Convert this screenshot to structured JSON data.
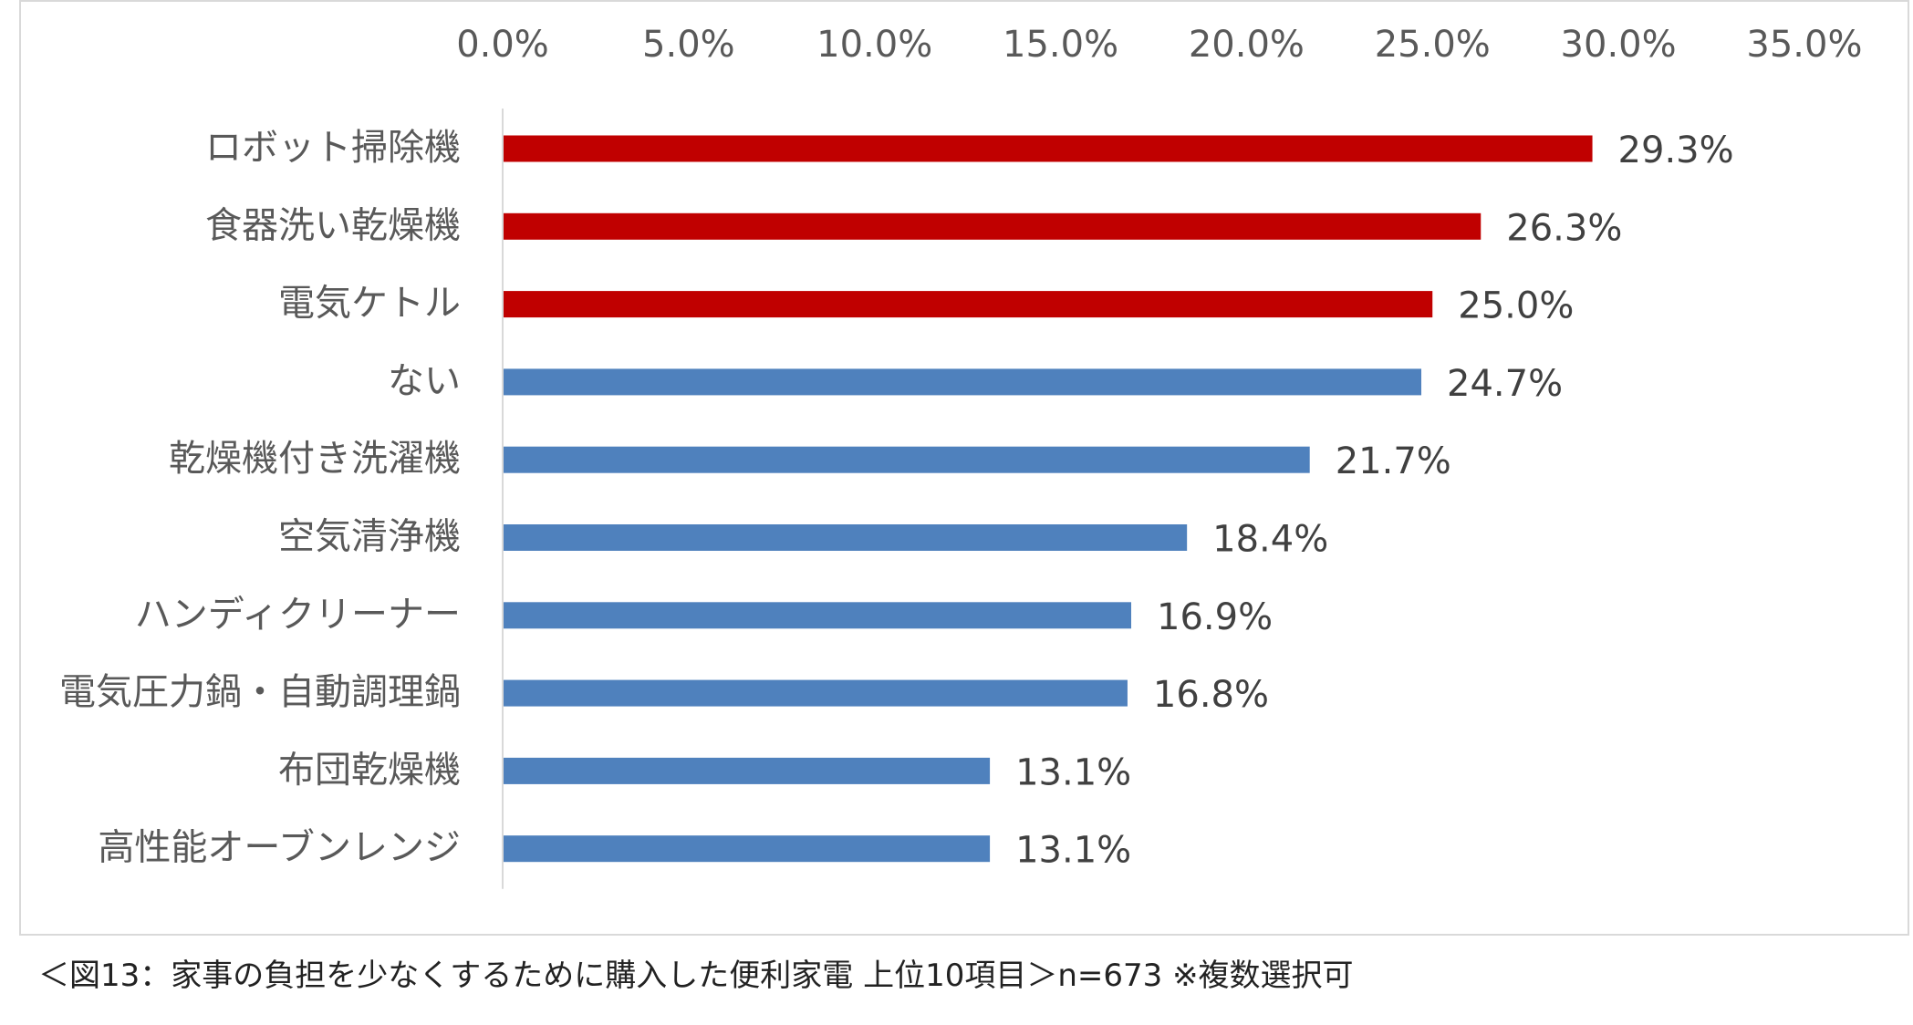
{
  "chart_data": {
    "type": "bar",
    "orientation": "horizontal",
    "title": "",
    "xlabel": "",
    "ylabel": "",
    "xlim": [
      0,
      35
    ],
    "tick_values": [
      0,
      5,
      10,
      15,
      20,
      25,
      30,
      35
    ],
    "tick_labels": [
      "0.0%",
      "5.0%",
      "10.0%",
      "15.0%",
      "20.0%",
      "25.0%",
      "30.0%",
      "35.0%"
    ],
    "axis_position": "top",
    "grid": false,
    "categories": [
      "ロボット掃除機",
      "食器洗い乾燥機",
      "電気ケトル",
      "ない",
      "乾燥機付き洗濯機",
      "空気清浄機",
      "ハンディクリーナー",
      "電気圧力鍋・自動調理鍋",
      "布団乾燥機",
      "高性能オーブンレンジ"
    ],
    "values": [
      29.3,
      26.3,
      25.0,
      24.7,
      21.7,
      18.4,
      16.9,
      16.8,
      13.1,
      13.1
    ],
    "data_labels": [
      "29.3%",
      "26.3%",
      "25.0%",
      "24.7%",
      "21.7%",
      "18.4%",
      "16.9%",
      "16.8%",
      "13.1%",
      "13.1%"
    ],
    "highlight_count": 3,
    "colors": {
      "highlight": "#c00000",
      "default": "#4f81bd",
      "axis": "#d9d9d9"
    }
  },
  "caption": "＜図13：家事の負担を少なくするために購入した便利家電 上位10項目＞n=673 ※複数選択可"
}
